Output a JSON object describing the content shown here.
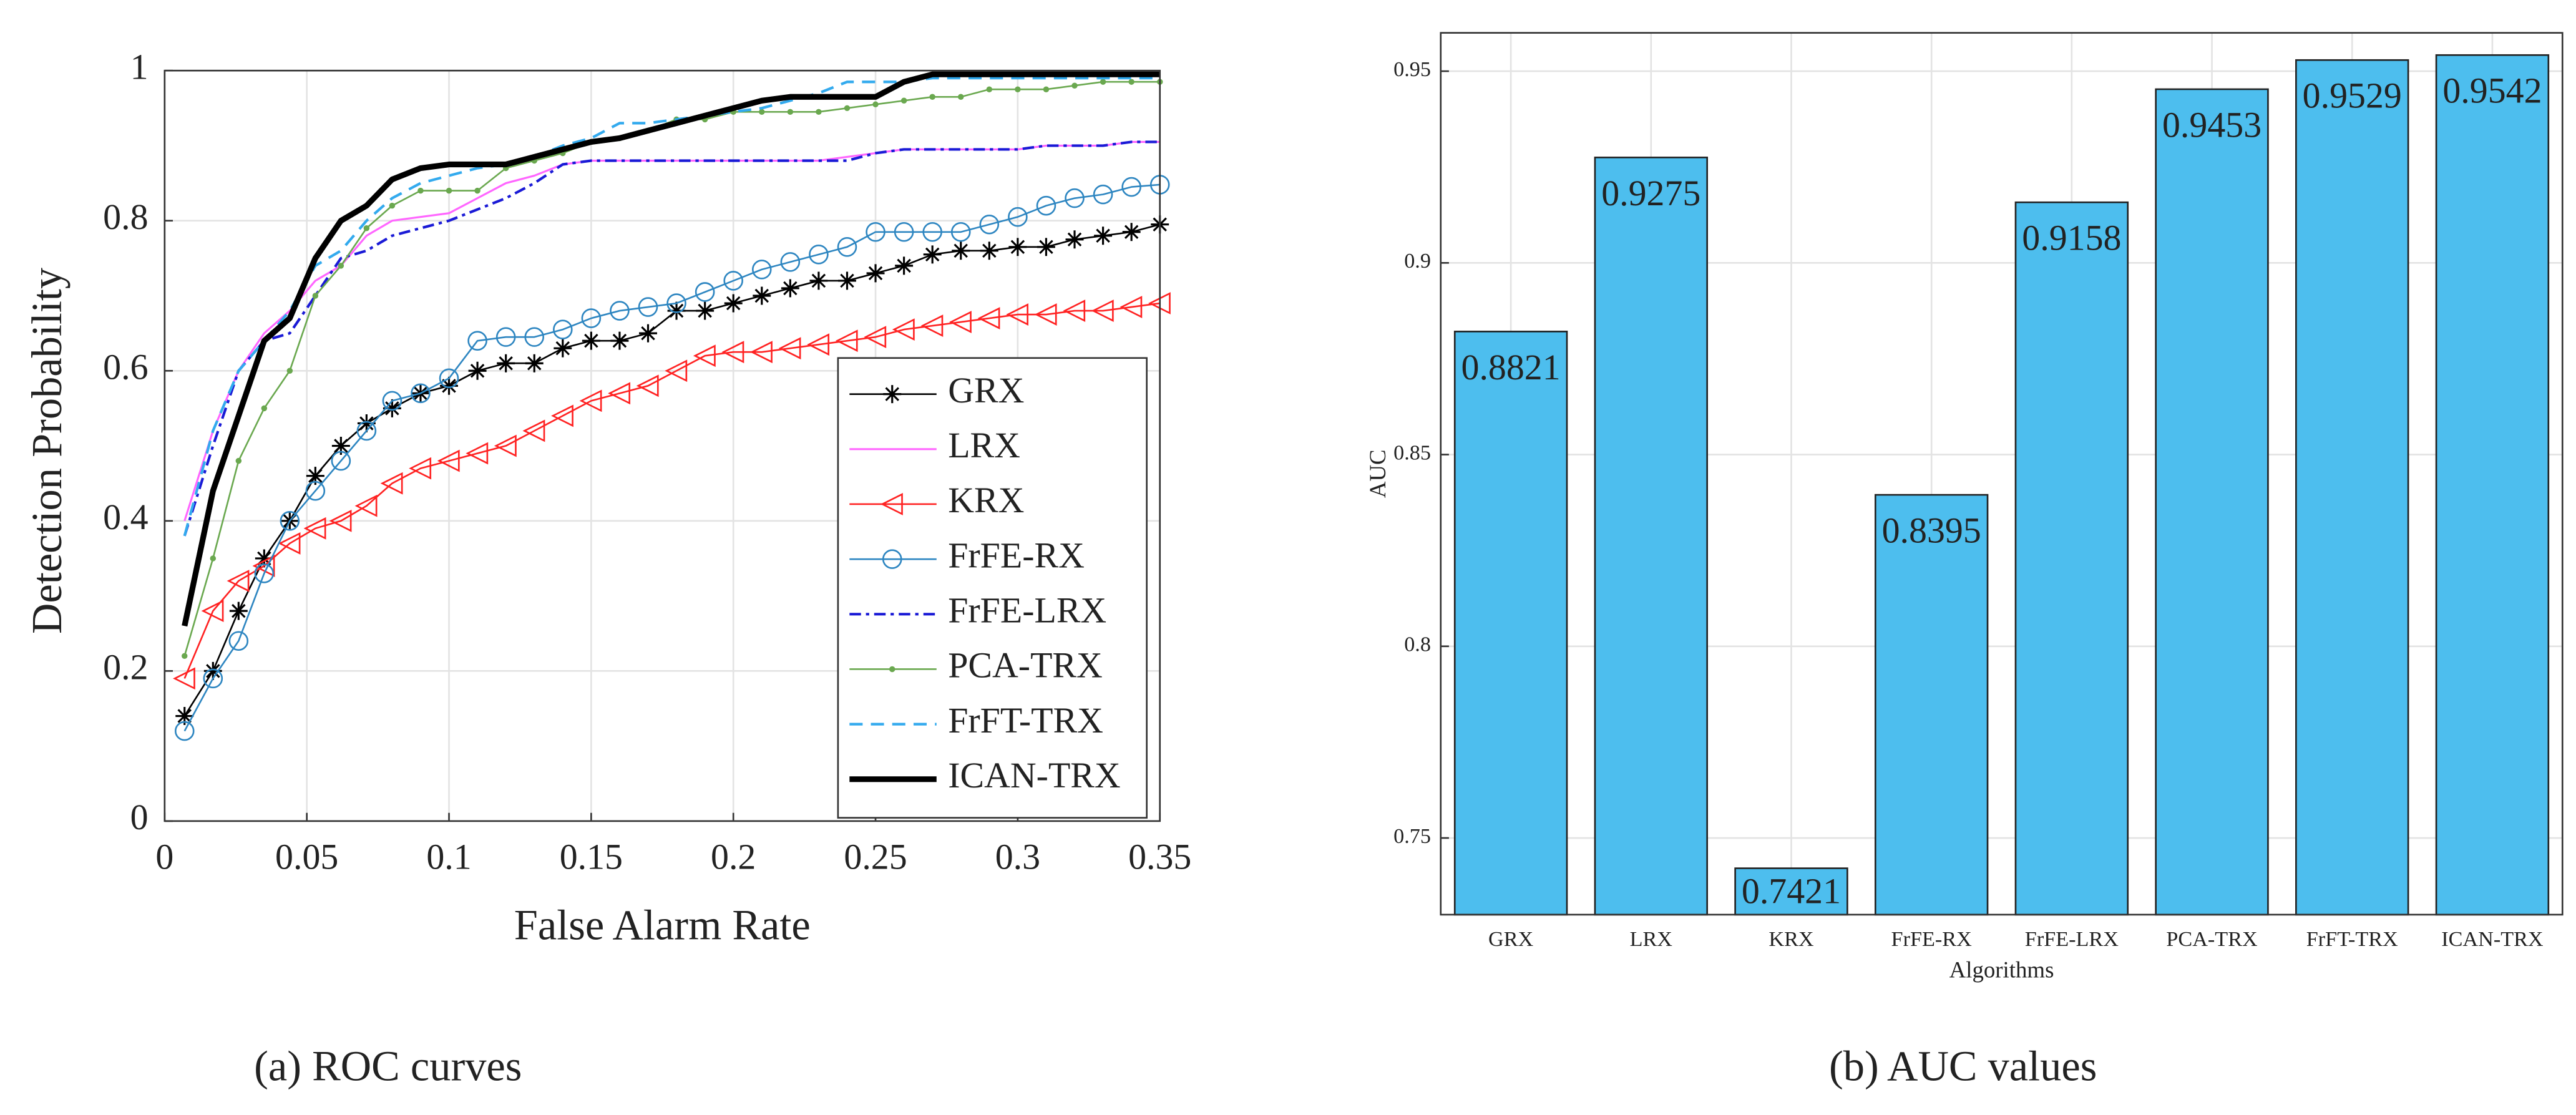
{
  "chart_data": [
    {
      "type": "line",
      "caption": "(a) ROC curves",
      "x_label": "False Alarm Rate",
      "y_label": "Detection Probability",
      "xlim": [
        0,
        0.35
      ],
      "xticks": [
        0,
        0.05,
        0.1,
        0.15,
        0.2,
        0.25,
        0.3,
        0.35
      ],
      "ylim": [
        0,
        1
      ],
      "yticks": [
        0,
        0.2,
        0.4,
        0.6,
        0.8,
        1
      ],
      "grid": true,
      "legend": "lower right",
      "x": [
        0.007,
        0.017,
        0.026,
        0.035,
        0.044,
        0.053,
        0.062,
        0.071,
        0.08,
        0.09,
        0.1,
        0.11,
        0.12,
        0.13,
        0.14,
        0.15,
        0.16,
        0.17,
        0.18,
        0.19,
        0.2,
        0.21,
        0.22,
        0.23,
        0.24,
        0.25,
        0.26,
        0.27,
        0.28,
        0.29,
        0.3,
        0.31,
        0.32,
        0.33,
        0.34,
        0.35
      ],
      "series": [
        {
          "name": "GRX",
          "color": "#000000",
          "marker": "asterisk",
          "dash": "solid",
          "width": 1,
          "values": [
            0.14,
            0.2,
            0.28,
            0.35,
            0.4,
            0.46,
            0.5,
            0.53,
            0.55,
            0.57,
            0.58,
            0.6,
            0.61,
            0.61,
            0.63,
            0.64,
            0.64,
            0.65,
            0.68,
            0.68,
            0.69,
            0.7,
            0.71,
            0.72,
            0.72,
            0.73,
            0.74,
            0.755,
            0.76,
            0.76,
            0.765,
            0.765,
            0.775,
            0.78,
            0.785,
            0.795
          ]
        },
        {
          "name": "LRX",
          "color": "#ff66ff",
          "marker": "none",
          "dash": "solid",
          "width": 1.2,
          "values": [
            0.4,
            0.52,
            0.6,
            0.65,
            0.68,
            0.72,
            0.74,
            0.78,
            0.8,
            0.805,
            0.81,
            0.83,
            0.85,
            0.86,
            0.875,
            0.88,
            0.88,
            0.88,
            0.88,
            0.88,
            0.88,
            0.88,
            0.88,
            0.88,
            0.885,
            0.89,
            0.895,
            0.895,
            0.895,
            0.895,
            0.895,
            0.9,
            0.9,
            0.9,
            0.905,
            0.905
          ]
        },
        {
          "name": "KRX",
          "color": "#ff2222",
          "marker": "triangle-left",
          "dash": "solid",
          "width": 1,
          "values": [
            0.19,
            0.28,
            0.32,
            0.34,
            0.37,
            0.39,
            0.4,
            0.42,
            0.45,
            0.47,
            0.48,
            0.49,
            0.5,
            0.52,
            0.54,
            0.56,
            0.57,
            0.58,
            0.6,
            0.62,
            0.625,
            0.625,
            0.63,
            0.635,
            0.64,
            0.645,
            0.655,
            0.66,
            0.665,
            0.67,
            0.675,
            0.675,
            0.68,
            0.68,
            0.685,
            0.69
          ]
        },
        {
          "name": "FrFE-RX",
          "color": "#2e86c1",
          "marker": "circle",
          "dash": "solid",
          "width": 1,
          "values": [
            0.12,
            0.19,
            0.24,
            0.33,
            0.4,
            0.44,
            0.48,
            0.52,
            0.56,
            0.57,
            0.59,
            0.64,
            0.645,
            0.645,
            0.655,
            0.67,
            0.68,
            0.685,
            0.69,
            0.705,
            0.72,
            0.735,
            0.745,
            0.755,
            0.765,
            0.785,
            0.785,
            0.785,
            0.785,
            0.795,
            0.805,
            0.82,
            0.83,
            0.835,
            0.845,
            0.848
          ]
        },
        {
          "name": "FrFE-LRX",
          "color": "#1a1ad6",
          "marker": "none",
          "dash": "dashdot",
          "width": 1.6,
          "values": [
            0.38,
            0.5,
            0.6,
            0.64,
            0.65,
            0.7,
            0.75,
            0.76,
            0.78,
            0.79,
            0.8,
            0.815,
            0.83,
            0.85,
            0.875,
            0.88,
            0.88,
            0.88,
            0.88,
            0.88,
            0.88,
            0.88,
            0.88,
            0.88,
            0.88,
            0.89,
            0.895,
            0.895,
            0.895,
            0.895,
            0.895,
            0.9,
            0.9,
            0.9,
            0.905,
            0.905
          ]
        },
        {
          "name": "PCA-TRX",
          "color": "#6aa84f",
          "marker": "dot",
          "dash": "solid",
          "width": 1,
          "values": [
            0.22,
            0.35,
            0.48,
            0.55,
            0.6,
            0.7,
            0.74,
            0.79,
            0.82,
            0.84,
            0.84,
            0.84,
            0.87,
            0.88,
            0.89,
            0.905,
            0.91,
            0.92,
            0.935,
            0.935,
            0.945,
            0.945,
            0.945,
            0.945,
            0.95,
            0.955,
            0.96,
            0.965,
            0.965,
            0.975,
            0.975,
            0.975,
            0.98,
            0.985,
            0.985,
            0.985
          ]
        },
        {
          "name": "FrFT-TRX",
          "color": "#33aaee",
          "marker": "none",
          "dash": "dashed",
          "width": 1.6,
          "values": [
            0.38,
            0.52,
            0.6,
            0.64,
            0.68,
            0.74,
            0.76,
            0.8,
            0.83,
            0.85,
            0.86,
            0.87,
            0.875,
            0.885,
            0.9,
            0.91,
            0.93,
            0.93,
            0.935,
            0.94,
            0.945,
            0.95,
            0.96,
            0.97,
            0.985,
            0.985,
            0.985,
            0.99,
            0.99,
            0.99,
            0.99,
            0.99,
            0.99,
            0.99,
            0.99,
            0.99
          ]
        },
        {
          "name": "ICAN-TRX",
          "color": "#000000",
          "marker": "none",
          "dash": "solid",
          "width": 3.5,
          "values": [
            0.26,
            0.44,
            0.54,
            0.64,
            0.67,
            0.75,
            0.8,
            0.82,
            0.855,
            0.87,
            0.875,
            0.875,
            0.875,
            0.885,
            0.895,
            0.905,
            0.91,
            0.92,
            0.93,
            0.94,
            0.95,
            0.96,
            0.965,
            0.965,
            0.965,
            0.965,
            0.985,
            0.995,
            0.995,
            0.995,
            0.995,
            0.995,
            0.995,
            0.995,
            0.995,
            0.995
          ]
        }
      ]
    },
    {
      "type": "bar",
      "caption": "(b) AUC values",
      "x_label": "Algorithms",
      "y_label": "AUC",
      "categories": [
        "GRX",
        "LRX",
        "KRX",
        "FrFE-RX",
        "FrFE-LRX",
        "PCA-TRX",
        "FrFT-TRX",
        "ICAN-TRX"
      ],
      "values": [
        0.8821,
        0.9275,
        0.7421,
        0.8395,
        0.9158,
        0.9453,
        0.9529,
        0.9542
      ],
      "color": "#4dbeee",
      "ylim": [
        0.73,
        0.96
      ],
      "yticks": [
        0.75,
        0.8,
        0.85,
        0.9,
        0.95
      ],
      "grid": true
    }
  ]
}
